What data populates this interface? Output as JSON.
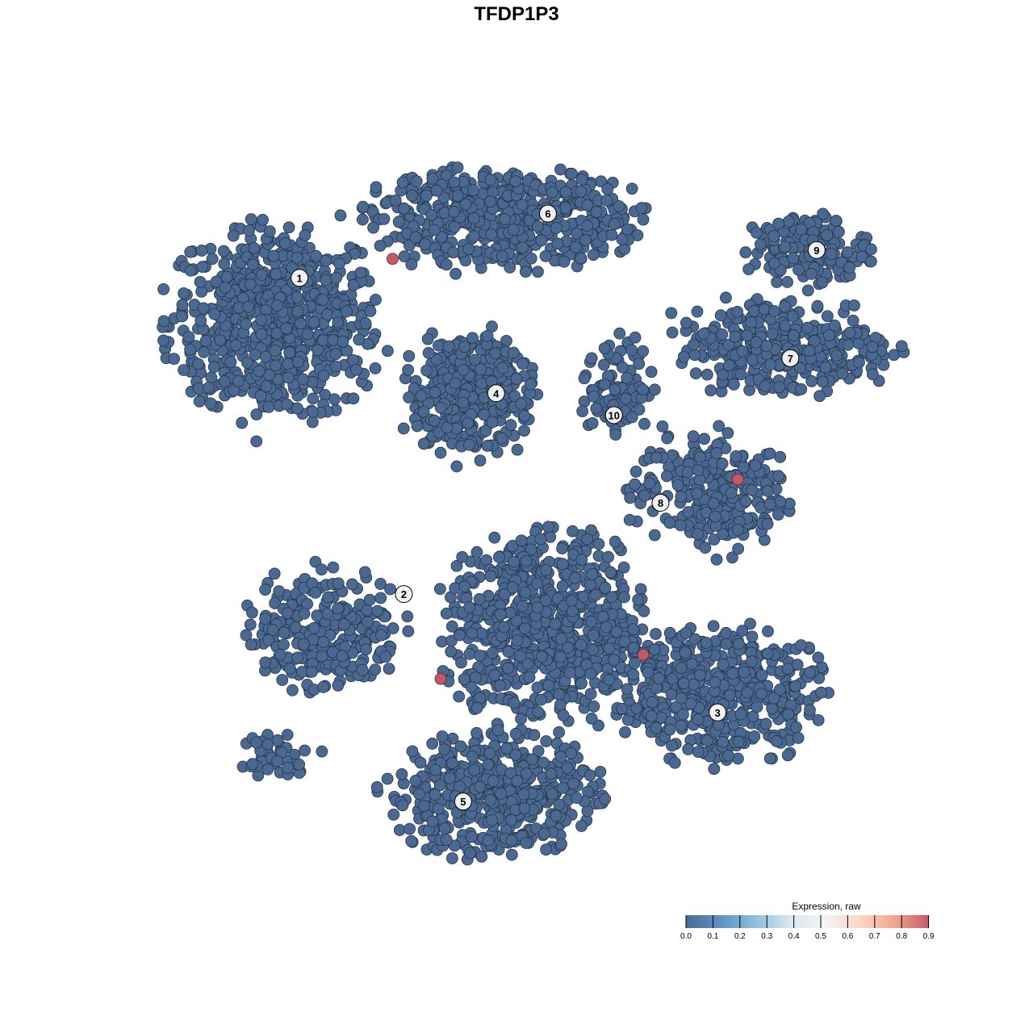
{
  "chart_data": {
    "type": "scatter",
    "title": "TFDP1P3",
    "xlabel": "",
    "ylabel": "",
    "axes_visible": false,
    "grid": false,
    "point_color_default": "#4a6890",
    "point_color_high": "#c25a66",
    "clusters": [
      {
        "label": "1",
        "center": [
          15.1,
          76.2
        ],
        "spread": [
          12.9,
          12.2
        ],
        "n": 700,
        "label_pos": [
          18.4,
          82.4
        ]
      },
      {
        "label": "6",
        "center": [
          45.2,
          90.6
        ],
        "spread": [
          17.2,
          6.6
        ],
        "n": 500,
        "label_pos": [
          51.5,
          91.2
        ]
      },
      {
        "label": "4",
        "center": [
          40.9,
          66.3
        ],
        "spread": [
          8.1,
          8.3
        ],
        "n": 350,
        "label_pos": [
          44.6,
          66.6
        ]
      },
      {
        "label": "10",
        "center": [
          60.8,
          67.4
        ],
        "spread": [
          4.3,
          6.6
        ],
        "n": 90,
        "label_pos": [
          60.3,
          63.6
        ]
      },
      {
        "label": "7",
        "center": [
          83.0,
          73.0
        ],
        "spread": [
          13.5,
          6.6
        ],
        "n": 320,
        "label_pos": [
          83.8,
          71.4
        ]
      },
      {
        "label": "9",
        "center": [
          86.0,
          86.2
        ],
        "spread": [
          7.5,
          4.4
        ],
        "n": 150,
        "label_pos": [
          87.3,
          86.2
        ]
      },
      {
        "label": "8",
        "center": [
          73.1,
          53.0
        ],
        "spread": [
          9.7,
          7.7
        ],
        "n": 260,
        "label_pos": [
          66.5,
          51.6
        ]
      },
      {
        "label": "2",
        "center": [
          21.5,
          34.3
        ],
        "spread": [
          9.7,
          7.7
        ],
        "n": 260,
        "label_pos": [
          32.3,
          39.1
        ]
      },
      {
        "label": "",
        "center": [
          51.6,
          34.3
        ],
        "spread": [
          12.9,
          12.2
        ],
        "n": 700
      },
      {
        "label": "3",
        "center": [
          74.2,
          25.4
        ],
        "spread": [
          12.9,
          8.8
        ],
        "n": 450,
        "label_pos": [
          74.1,
          22.9
        ]
      },
      {
        "label": "5",
        "center": [
          44.1,
          11.6
        ],
        "spread": [
          12.9,
          7.7
        ],
        "n": 500,
        "label_pos": [
          40.2,
          10.7
        ]
      },
      {
        "label": "",
        "center": [
          15.1,
          17.1
        ],
        "spread": [
          5.4,
          2.8
        ],
        "n": 40
      }
    ],
    "high_expression_points": [
      {
        "x": 30.8,
        "y": 85.0,
        "value": 0.9
      },
      {
        "x": 76.8,
        "y": 54.8,
        "value": 0.9
      },
      {
        "x": 64.2,
        "y": 30.8,
        "value": 0.9
      },
      {
        "x": 37.2,
        "y": 27.5,
        "value": 0.9
      }
    ],
    "legend": {
      "title": "Expression, raw",
      "placement": "bottom-right",
      "ticks": [
        "0.0",
        "0.1",
        "0.2",
        "0.3",
        "0.4",
        "0.5",
        "0.6",
        "0.7",
        "0.8",
        "0.9"
      ],
      "range": [
        0,
        0.9
      ],
      "colors": [
        "#4a6a94",
        "#5f92c4",
        "#8ec0dc",
        "#d6e8f0",
        "#f4f4f4",
        "#fbd6c6",
        "#f0a88e",
        "#c85868"
      ]
    }
  }
}
